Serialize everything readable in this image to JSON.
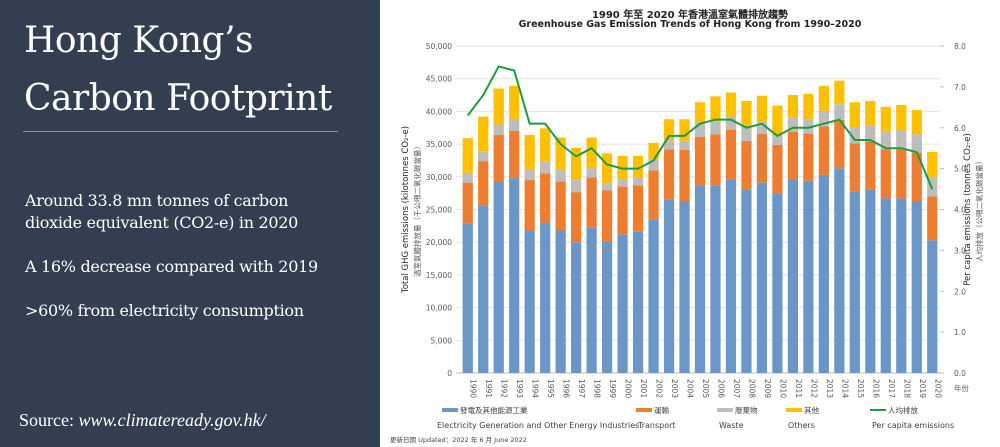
{
  "left_panel": {
    "title_line1": "Hong Kong’s",
    "title_line2": "Carbon Footprint",
    "bullets": [
      "Around 33.8 mn tonnes of carbon dioxide equivalent (CO2-e) in 2020",
      "A 16% decrease compared with 2019",
      ">60% from electricity consumption"
    ],
    "source_label": "Source:",
    "source_url": "www.climateready.gov.hk/"
  },
  "chart_data": {
    "type": "bar",
    "stacked": true,
    "title_cn": "1990 年至 2020 年香港溫室氣體排放趨勢",
    "title": "Greenhouse Gas Emission Trends of Hong Kong from 1990–2020",
    "ylabel": "Total GHG emissions (kilotonnes CO₂-e)",
    "ylabel_cn": "溫室氣體排放量（千公噸二氧化碳當量）",
    "y2label": "Per capita emissions (tonnes CO₂-e)",
    "y2label_cn": "人均排放（公噸二氧化碳當量）",
    "xlabel_cn": "年份",
    "ylim": [
      0,
      50000
    ],
    "yticks": [
      "0",
      "5,000",
      "10,000",
      "15,000",
      "20,000",
      "25,000",
      "30,000",
      "35,000",
      "40,000",
      "45,000",
      "50,000"
    ],
    "y2lim": [
      0,
      8
    ],
    "y2ticks": [
      "0.0",
      "1.0",
      "2.0",
      "3.0",
      "4.0",
      "5.0",
      "6.0",
      "7.0",
      "8.0"
    ],
    "grid": true,
    "legend_position": "bottom",
    "categories": [
      "1990",
      "1991",
      "1992",
      "1993",
      "1994",
      "1995",
      "1996",
      "1997",
      "1998",
      "1999",
      "2000",
      "2001",
      "2002",
      "2003",
      "2004",
      "2005",
      "2006",
      "2007",
      "2008",
      "2009",
      "2010",
      "2011",
      "2012",
      "2013",
      "2014",
      "2015",
      "2016",
      "2017",
      "2018",
      "2019",
      "2020"
    ],
    "series": [
      {
        "name": "Electricity Generation and Other Energy Industries",
        "name_cn": "發電及其他能源工業",
        "color": "#6b96c8",
        "type": "bar",
        "values": [
          22900,
          25600,
          29200,
          29800,
          21800,
          23000,
          21800,
          20000,
          22200,
          20100,
          21200,
          21600,
          23500,
          26500,
          26300,
          28600,
          28700,
          29600,
          28100,
          29100,
          27500,
          29600,
          29400,
          30300,
          31300,
          27700,
          28000,
          26700,
          26700,
          26300,
          20300
        ]
      },
      {
        "name": "Transport",
        "name_cn": "運輸",
        "color": "#ed7d31",
        "type": "bar",
        "values": [
          6200,
          6800,
          7200,
          7200,
          7700,
          7500,
          7500,
          7600,
          7700,
          7800,
          7300,
          7100,
          7500,
          7700,
          7800,
          7500,
          7800,
          7600,
          7400,
          7500,
          7400,
          7300,
          7200,
          7400,
          7400,
          7400,
          7400,
          7500,
          7500,
          7400,
          6700
        ]
      },
      {
        "name": "Waste",
        "name_cn": "廢棄物",
        "color": "#bdbdbd",
        "type": "bar",
        "values": [
          1500,
          1500,
          1600,
          1700,
          1700,
          1800,
          1800,
          1900,
          1400,
          1100,
          1100,
          1200,
          1600,
          1500,
          1400,
          2200,
          1900,
          2000,
          2400,
          1800,
          1500,
          2200,
          2200,
          2400,
          2400,
          2500,
          2400,
          2700,
          2900,
          2800,
          3000
        ]
      },
      {
        "name": "Others",
        "name_cn": "其他",
        "color": "#ffc000",
        "type": "bar",
        "values": [
          5300,
          5300,
          5500,
          5200,
          5200,
          5100,
          4900,
          4900,
          4700,
          4600,
          3600,
          3300,
          2600,
          3100,
          3300,
          3100,
          3900,
          3700,
          3700,
          4000,
          4500,
          3400,
          3900,
          3800,
          3600,
          3800,
          3800,
          3800,
          3900,
          3700,
          3800
        ]
      },
      {
        "name": "Per capita emissions",
        "name_cn": "人均排放",
        "color": "#1e9b3c",
        "type": "line",
        "axis": "right",
        "values": [
          6.3,
          6.8,
          7.5,
          7.4,
          6.1,
          6.1,
          5.6,
          5.3,
          5.5,
          5.1,
          5.0,
          5.0,
          5.2,
          5.8,
          5.8,
          6.1,
          6.2,
          6.2,
          6.0,
          6.1,
          5.8,
          6.0,
          6.0,
          6.1,
          6.2,
          5.7,
          5.7,
          5.5,
          5.5,
          5.4,
          4.5
        ]
      }
    ]
  },
  "footer": {
    "updated": "更新日期 Updated：2022 年 6 月 June 2022"
  }
}
